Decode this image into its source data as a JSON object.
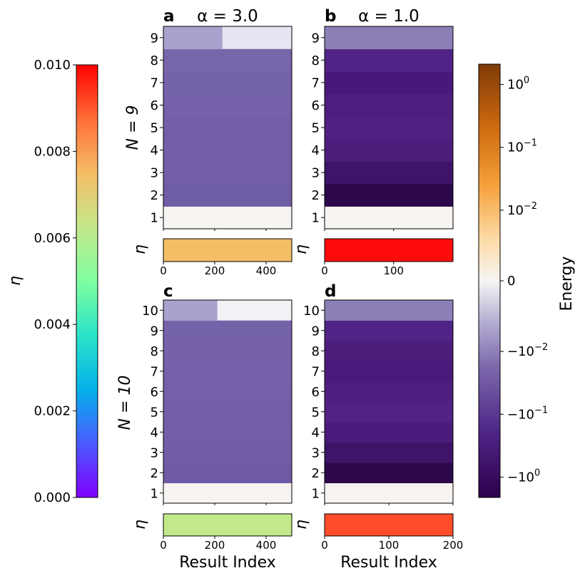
{
  "chart_data": {
    "type": "heatmap",
    "panels": [
      {
        "letter": "a",
        "title": "α = 3.0",
        "alpha": 3.0,
        "N": 9,
        "row_ticks": [
          "1",
          "2",
          "3",
          "4",
          "5",
          "6",
          "7",
          "8",
          "9"
        ],
        "row_colors": [
          "#f6f3f1",
          "#6f5ca6",
          "#735fa8",
          "#735fa8",
          "#735fa8",
          "#7461a9",
          "#7563aa",
          "#7866ab",
          "#aaa2cd"
        ],
        "top_row_light_color": "#e6e5f1",
        "top_row_light_span": [
          0.46,
          1.0
        ],
        "eta_strip_color": "#f2bf66",
        "eta_value": 0.0076,
        "x_ticks": [
          "0",
          "200",
          "400"
        ],
        "x_tick_values": [
          0,
          200,
          400
        ],
        "x_max": 500,
        "x_label": ""
      },
      {
        "letter": "b",
        "title": "α = 1.0",
        "alpha": 1.0,
        "N": 9,
        "row_ticks": [
          "1",
          "2",
          "3",
          "4",
          "5",
          "6",
          "7",
          "8",
          "9"
        ],
        "row_colors": [
          "#f6f3f1",
          "#2d0849",
          "#3d1468",
          "#4b1e7c",
          "#4e2181",
          "#4c1f7e",
          "#47197a",
          "#502386",
          "#8c7fb6"
        ],
        "eta_strip_color": "#ff0b0b",
        "eta_value": 0.0098,
        "x_ticks": [
          "0",
          "100"
        ],
        "x_tick_values": [
          0,
          100
        ],
        "x_max": 186,
        "x_label": ""
      },
      {
        "letter": "c",
        "title": "",
        "alpha": 3.0,
        "N": 10,
        "row_ticks": [
          "1",
          "2",
          "3",
          "4",
          "5",
          "6",
          "7",
          "8",
          "9",
          "10"
        ],
        "row_colors": [
          "#f6f3f1",
          "#6e5aa5",
          "#715da7",
          "#725fa7",
          "#735fa8",
          "#7360a8",
          "#7461a9",
          "#7562a9",
          "#7563aa",
          "#aaa2cd"
        ],
        "top_row_light_color": "#f1f1f6",
        "top_row_light_span": [
          0.42,
          1.0
        ],
        "eta_strip_color": "#c2e88a",
        "eta_value": 0.0062,
        "x_ticks": [
          "0",
          "200",
          "400"
        ],
        "x_tick_values": [
          0,
          200,
          400
        ],
        "x_max": 500,
        "x_label": "Result Index"
      },
      {
        "letter": "d",
        "title": "",
        "alpha": 1.0,
        "N": 10,
        "row_ticks": [
          "1",
          "2",
          "3",
          "4",
          "5",
          "6",
          "7",
          "8",
          "9",
          "10"
        ],
        "row_colors": [
          "#f6f3f1",
          "#2d0849",
          "#3d1468",
          "#491c7b",
          "#4f2283",
          "#4c1f7e",
          "#481a7a",
          "#4b1e7c",
          "#502386",
          "#8c7fb6"
        ],
        "eta_strip_color": "#ff4d2a",
        "eta_value": 0.0096,
        "x_ticks": [
          "0",
          "100",
          "200"
        ],
        "x_tick_values": [
          0,
          100,
          200
        ],
        "x_max": 200,
        "x_label": "Result Index"
      }
    ],
    "row_labels": [
      "N = 9",
      "N = 10"
    ],
    "eta_axis_label": "η",
    "eta_colorbar": {
      "label": "η",
      "ticks": [
        "0.000",
        "0.002",
        "0.004",
        "0.006",
        "0.008",
        "0.010"
      ],
      "tick_values": [
        0,
        0.002,
        0.004,
        0.006,
        0.008,
        0.01
      ],
      "range": [
        0,
        0.01
      ],
      "colormap": "rainbow"
    },
    "energy_colorbar": {
      "label": "Energy",
      "ticks": [
        {
          "base": "10",
          "exp": "0"
        },
        {
          "base": "10",
          "exp": "−1"
        },
        {
          "base": "10",
          "exp": "−2"
        },
        {
          "base": "0",
          "exp": ""
        },
        {
          "base": "−10",
          "exp": "−2"
        },
        {
          "base": "−10",
          "exp": "−1"
        },
        {
          "base": "−10",
          "exp": "0"
        }
      ],
      "scale": "symlog",
      "colormap": "PuOr"
    }
  }
}
